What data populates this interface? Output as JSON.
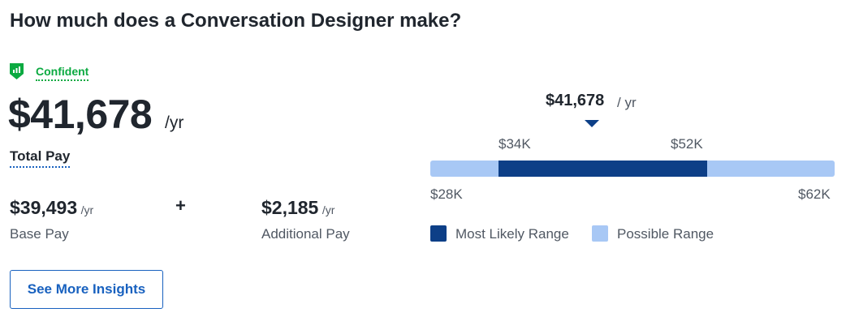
{
  "title": "How much does a Conversation Designer make?",
  "confidence": {
    "label": "Confident",
    "icon": "bar-chart-shield-icon",
    "color": "#0caa41"
  },
  "total_pay": {
    "value": "$41,678",
    "unit": "/yr",
    "label": "Total Pay"
  },
  "base_pay": {
    "value": "$39,493",
    "unit": "/yr",
    "label": "Base Pay"
  },
  "plus_sign": "+",
  "additional_pay": {
    "value": "$2,185",
    "unit": "/yr",
    "label": "Additional Pay"
  },
  "cta": {
    "label": "See More Insights"
  },
  "chart_data": {
    "type": "bar",
    "median": 41678,
    "median_label": "$41,678",
    "median_unit": "/ yr",
    "most_likely_range": [
      34000,
      52000
    ],
    "most_likely_labels": [
      "$34K",
      "$52K"
    ],
    "possible_range": [
      28000,
      62000
    ],
    "possible_labels": [
      "$28K",
      "$62K"
    ],
    "legend": [
      {
        "name": "Most Likely Range",
        "color": "#0d3f87"
      },
      {
        "name": "Possible Range",
        "color": "#a8c8f5"
      }
    ]
  }
}
